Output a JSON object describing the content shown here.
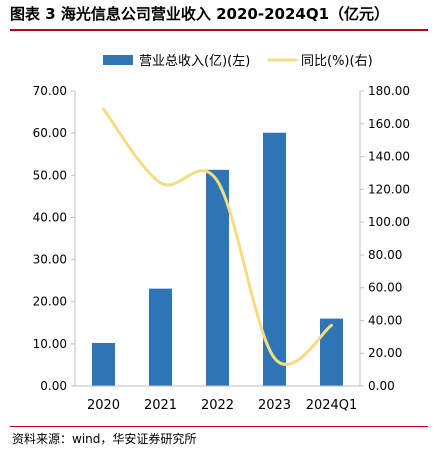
{
  "title": "图表 3 海光信息公司营业收入 2020-2024Q1（亿元）",
  "source": "资料来源：wind，华安证券研究所",
  "colors": {
    "bar": "#2e75b6",
    "line": "#f5dc82",
    "rule": "#b8001c"
  },
  "chart_data": {
    "type": "bar",
    "categories": [
      "2020",
      "2021",
      "2022",
      "2023",
      "2024Q1"
    ],
    "series": [
      {
        "name": "营业总收入(亿)(左)",
        "type": "bar",
        "axis": "left",
        "values": [
          10.2,
          23.1,
          51.3,
          60.1,
          16.0
        ]
      },
      {
        "name": "同比(%)(右)",
        "type": "line",
        "axis": "right",
        "values": [
          169,
          124,
          125,
          17,
          37
        ]
      }
    ],
    "y_left": {
      "min": 0,
      "max": 70,
      "step": 10,
      "ticks": [
        "0.00",
        "10.00",
        "20.00",
        "30.00",
        "40.00",
        "50.00",
        "60.00",
        "70.00"
      ]
    },
    "y_right": {
      "min": 0,
      "max": 180,
      "step": 20,
      "ticks": [
        "0.00",
        "20.00",
        "40.00",
        "60.00",
        "80.00",
        "100.00",
        "120.00",
        "140.00",
        "160.00",
        "180.00"
      ]
    },
    "grid": false,
    "legend_position": "top"
  }
}
